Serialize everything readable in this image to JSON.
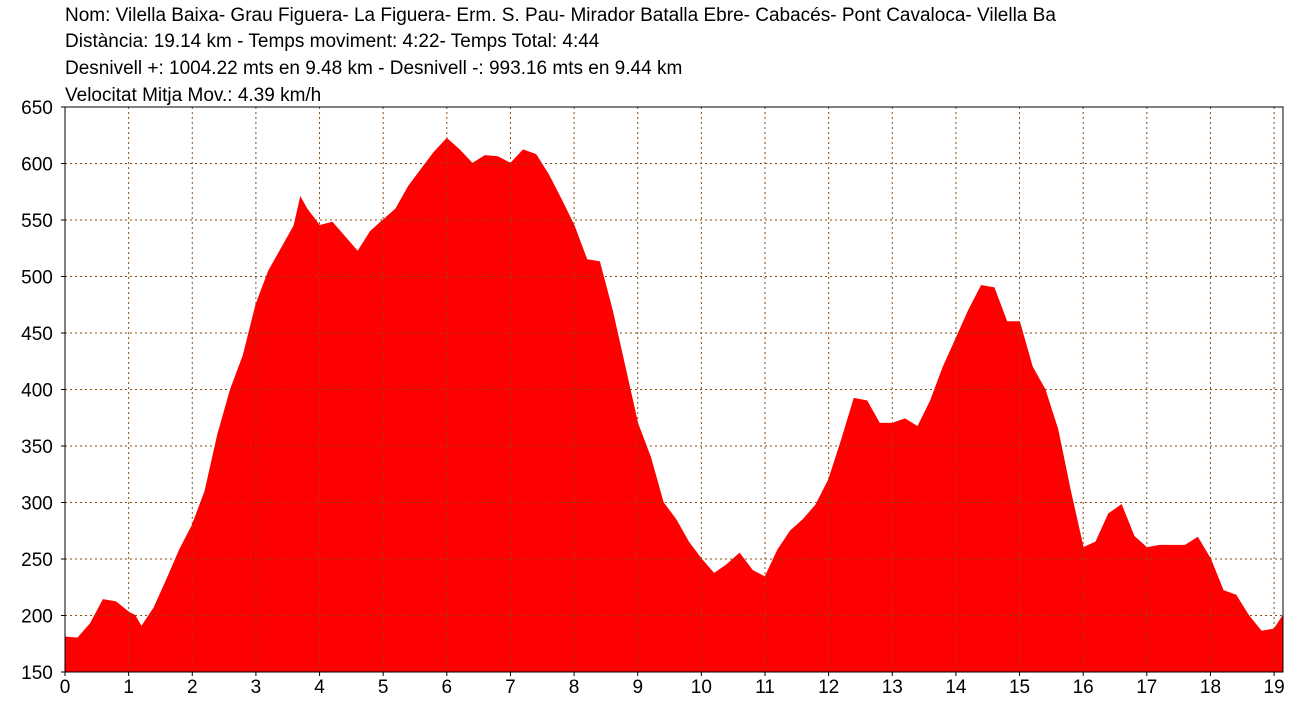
{
  "chart_data": {
    "type": "area",
    "title": "Nom: Vilella Baixa- Grau Figuera- La Figuera- Erm. S. Pau- Mirador Batalla Ebre- Cabacés- Pont Cavaloca- Vilella Ba",
    "annotations": [
      "Distància: 19.14 km - Temps moviment: 4:22- Temps Total: 4:44",
      "Desnivell +: 1004.22 mts en 9.48 km - Desnivell -: 993.16 mts en 9.44 km",
      "Velocitat Mitja Mov.: 4.39 km/h"
    ],
    "x": [
      0,
      0.2,
      0.4,
      0.6,
      0.8,
      1.0,
      1.1,
      1.2,
      1.4,
      1.6,
      1.8,
      2.0,
      2.2,
      2.4,
      2.6,
      2.8,
      3.0,
      3.2,
      3.4,
      3.6,
      3.7,
      3.8,
      4.0,
      4.2,
      4.4,
      4.6,
      4.8,
      5.0,
      5.2,
      5.4,
      5.6,
      5.8,
      6.0,
      6.2,
      6.4,
      6.6,
      6.8,
      7.0,
      7.2,
      7.4,
      7.6,
      7.8,
      8.0,
      8.2,
      8.4,
      8.6,
      8.8,
      9.0,
      9.2,
      9.4,
      9.6,
      9.8,
      10.0,
      10.2,
      10.4,
      10.6,
      10.8,
      11.0,
      11.2,
      11.4,
      11.6,
      11.8,
      12.0,
      12.2,
      12.4,
      12.6,
      12.8,
      13.0,
      13.2,
      13.4,
      13.6,
      13.8,
      14.0,
      14.2,
      14.4,
      14.6,
      14.8,
      15.0,
      15.2,
      15.4,
      15.6,
      15.8,
      16.0,
      16.2,
      16.4,
      16.6,
      16.8,
      17.0,
      17.2,
      17.4,
      17.6,
      17.8,
      18.0,
      18.2,
      18.4,
      18.6,
      18.8,
      19.0,
      19.14
    ],
    "series": [
      {
        "color": "#ff0000",
        "values": [
          181,
          180,
          193,
          214,
          212,
          203,
          200,
          190,
          207,
          232,
          258,
          280,
          310,
          360,
          400,
          430,
          475,
          505,
          525,
          545,
          570,
          560,
          545,
          548,
          535,
          522,
          540,
          550,
          560,
          580,
          595,
          610,
          622,
          612,
          600,
          607,
          606,
          600,
          612,
          608,
          590,
          568,
          545,
          515,
          513,
          470,
          420,
          370,
          340,
          300,
          285,
          265,
          250,
          237,
          245,
          255,
          240,
          234,
          258,
          275,
          285,
          298,
          320,
          355,
          392,
          390,
          370,
          370,
          374,
          367,
          390,
          420,
          445,
          470,
          492,
          490,
          460,
          460,
          420,
          400,
          365,
          310,
          260,
          265,
          290,
          298,
          270,
          260,
          262,
          262,
          262,
          269,
          250,
          222,
          218,
          200,
          186,
          188,
          200
        ]
      }
    ],
    "xlim": [
      0,
      19.14
    ],
    "ylim": [
      150,
      650
    ],
    "xticks": [
      0,
      1,
      2,
      3,
      4,
      5,
      6,
      7,
      8,
      9,
      10,
      11,
      12,
      13,
      14,
      15,
      16,
      17,
      18,
      19
    ],
    "yticks": [
      150,
      200,
      250,
      300,
      350,
      400,
      450,
      500,
      550,
      600,
      650
    ],
    "grid": true
  }
}
